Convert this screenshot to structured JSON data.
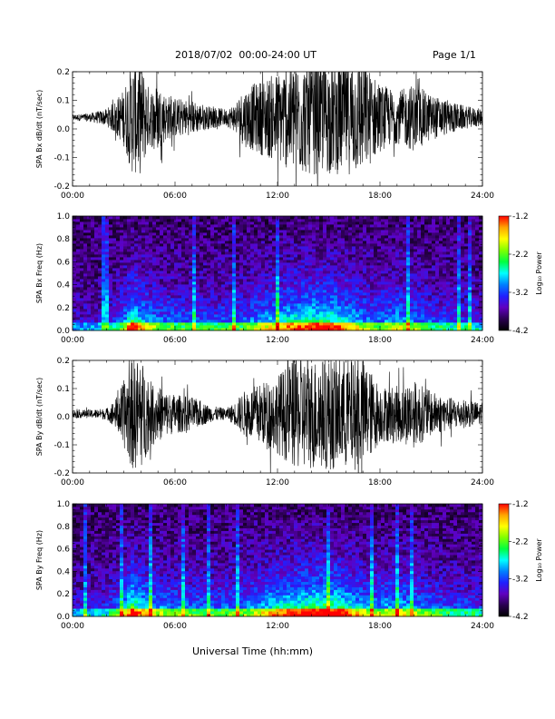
{
  "header": {
    "date_range": "2018/07/02  00:00-24:00 UT",
    "page": "Page 1/1"
  },
  "footer": {
    "xlabel": "Universal Time (hh:mm)"
  },
  "colors": {
    "trace": "#000000",
    "background": "#ffffff"
  },
  "colorbar": {
    "label": "Log₁₀ Power",
    "ticks": [
      "-1.2",
      "-2.2",
      "-3.2",
      "-4.2"
    ],
    "stops": [
      "#ff0000",
      "#ffa500",
      "#ffff00",
      "#7fff00",
      "#00ff40",
      "#00ffff",
      "#0080ff",
      "#2020ff",
      "#6000c0",
      "#2a0050",
      "#000000"
    ]
  },
  "chart_data": [
    {
      "type": "line",
      "ylabel": "SPA Bx dB/dt (nT/sec)",
      "ylim": [
        -0.2,
        0.2
      ],
      "yticks": [
        "-0.2",
        "-0.1",
        "0.0",
        "0.1",
        "0.2"
      ],
      "xlim": [
        0,
        24
      ],
      "xticks": [
        "00:00",
        "06:00",
        "12:00",
        "18:00",
        "24:00"
      ],
      "x_hours": [
        0,
        1,
        2,
        2.5,
        3,
        3.5,
        4,
        4.5,
        5,
        5.5,
        6,
        7,
        8,
        9,
        9.5,
        10,
        11,
        12,
        13,
        14,
        15,
        16,
        17,
        18,
        19,
        20,
        21,
        22,
        23,
        24
      ],
      "amplitude": [
        0.01,
        0.015,
        0.03,
        0.06,
        0.1,
        0.2,
        0.2,
        0.1,
        0.12,
        0.08,
        0.07,
        0.06,
        0.04,
        0.03,
        0.05,
        0.1,
        0.13,
        0.16,
        0.2,
        0.2,
        0.2,
        0.2,
        0.2,
        0.12,
        0.09,
        0.12,
        0.08,
        0.06,
        0.04,
        0.03
      ],
      "baseline": 0.04
    },
    {
      "type": "heatmap",
      "ylabel": "SPA Bx Freq (Hz)",
      "ylim": [
        0,
        1.0
      ],
      "yticks": [
        "0.0",
        "0.2",
        "0.4",
        "0.6",
        "0.8",
        "1.0"
      ],
      "xlim": [
        0,
        24
      ],
      "xticks": [
        "00:00",
        "06:00",
        "12:00",
        "18:00",
        "24:00"
      ],
      "zlim": [
        -4.2,
        -1.2
      ],
      "activity_hours": [
        0,
        2,
        3,
        3.5,
        4,
        5,
        6,
        8,
        10,
        12,
        14,
        15,
        16,
        17,
        18,
        19,
        20,
        22,
        24
      ],
      "activity_level": [
        0.2,
        0.25,
        0.5,
        0.9,
        0.7,
        0.5,
        0.45,
        0.4,
        0.45,
        0.7,
        0.85,
        0.9,
        0.75,
        0.55,
        0.5,
        0.6,
        0.5,
        0.35,
        0.3
      ]
    },
    {
      "type": "line",
      "ylabel": "SPA By dB/dt (nT/sec)",
      "ylim": [
        -0.2,
        0.2
      ],
      "yticks": [
        "-0.2",
        "-0.1",
        "0.0",
        "0.1",
        "0.2"
      ],
      "xlim": [
        0,
        24
      ],
      "xticks": [
        "00:00",
        "06:00",
        "12:00",
        "18:00",
        "24:00"
      ],
      "x_hours": [
        0,
        1,
        2,
        2.5,
        3,
        3.5,
        4,
        4.5,
        5,
        5.5,
        6,
        7,
        8,
        9,
        9.5,
        10,
        11,
        12,
        13,
        14,
        15,
        16,
        17,
        18,
        19,
        20,
        21,
        22,
        23,
        24
      ],
      "amplitude": [
        0.015,
        0.015,
        0.02,
        0.05,
        0.12,
        0.2,
        0.2,
        0.12,
        0.1,
        0.08,
        0.07,
        0.06,
        0.03,
        0.02,
        0.04,
        0.08,
        0.11,
        0.14,
        0.2,
        0.2,
        0.2,
        0.2,
        0.2,
        0.1,
        0.1,
        0.12,
        0.08,
        0.06,
        0.05,
        0.04
      ],
      "baseline": 0.01
    },
    {
      "type": "heatmap",
      "ylabel": "SPA By Freq (Hz)",
      "ylim": [
        0,
        1.0
      ],
      "yticks": [
        "0.0",
        "0.2",
        "0.4",
        "0.6",
        "0.8",
        "1.0"
      ],
      "xlim": [
        0,
        24
      ],
      "xticks": [
        "00:00",
        "06:00",
        "12:00",
        "18:00",
        "24:00"
      ],
      "zlim": [
        -4.2,
        -1.2
      ],
      "activity_hours": [
        0,
        2,
        3,
        3.5,
        4,
        5,
        6,
        8,
        10,
        12,
        14,
        15,
        16,
        17,
        18,
        19,
        20,
        22,
        24
      ],
      "activity_level": [
        0.25,
        0.3,
        0.55,
        0.95,
        0.75,
        0.55,
        0.5,
        0.45,
        0.5,
        0.75,
        0.9,
        0.95,
        0.8,
        0.6,
        0.55,
        0.65,
        0.55,
        0.4,
        0.35
      ]
    }
  ]
}
